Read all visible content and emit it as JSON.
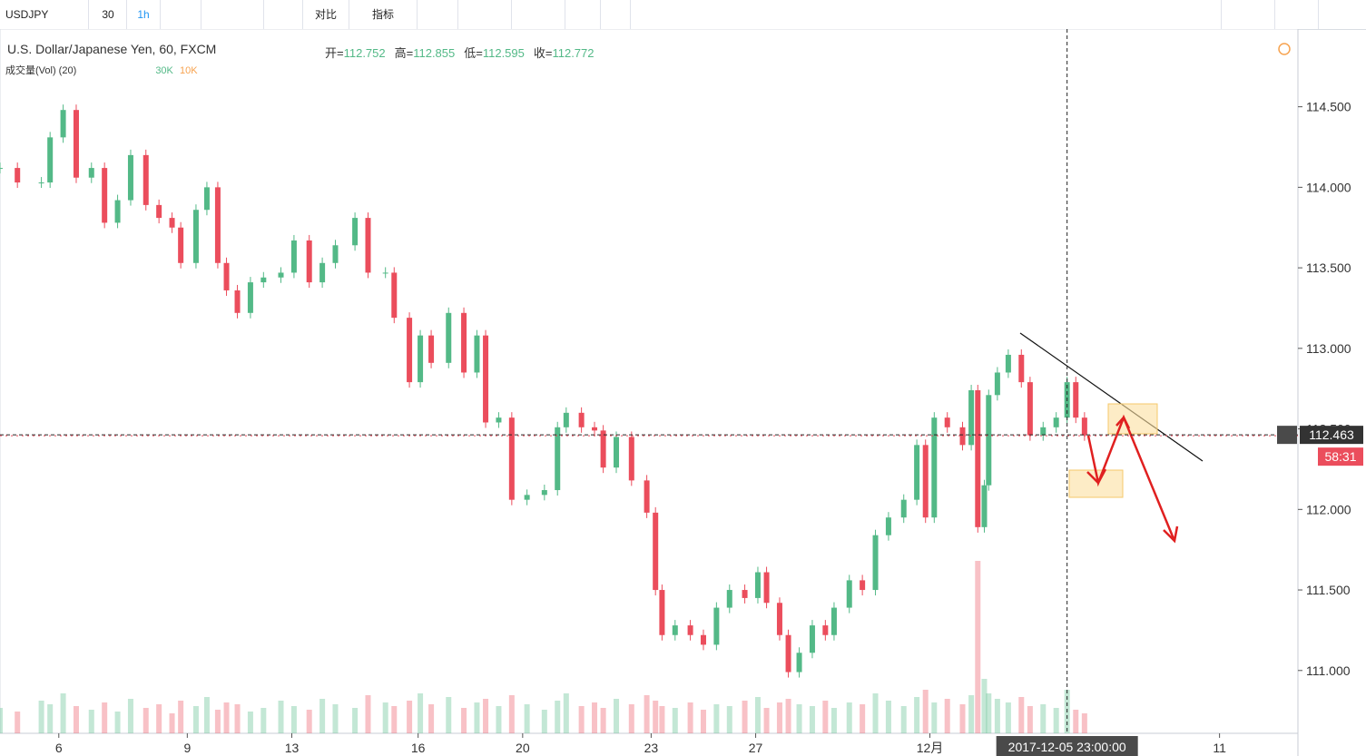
{
  "toolbar": {
    "symbol": "USDJPY",
    "interval_input": "30",
    "interval": "1h",
    "compare": "对比",
    "indicators": "指标"
  },
  "legend": {
    "title": "U.S. Dollar/Japanese Yen, 60, FXCM",
    "ohlc": [
      {
        "label": "开=",
        "value": 112.752
      },
      {
        "label": "高=",
        "value": 112.855
      },
      {
        "label": "低=",
        "value": 112.595
      },
      {
        "label": "收=",
        "value": 112.772
      }
    ],
    "volume_title": "成交量(Vol) (20)",
    "volume_values": [
      "30K",
      "10K"
    ]
  },
  "chart_data": {
    "type": "candlestick",
    "x": [
      0,
      8,
      19,
      23,
      29,
      35,
      42,
      48,
      54,
      60,
      67,
      73,
      79,
      83,
      90,
      95,
      100,
      104,
      109,
      115,
      121,
      129,
      135,
      142,
      148,
      154,
      163,
      169,
      177,
      181,
      188,
      193,
      198,
      206,
      213,
      219,
      223,
      229,
      235,
      242,
      250,
      256,
      260,
      267,
      273,
      277,
      283,
      290,
      297,
      301,
      304,
      310,
      317,
      323,
      329,
      335,
      342,
      348,
      352,
      358,
      362,
      367,
      373,
      379,
      383,
      390,
      396,
      402,
      408,
      415,
      421,
      425,
      429,
      435,
      442,
      446,
      449,
      452,
      454,
      458,
      463,
      469,
      473,
      479,
      485,
      490,
      494,
      498
    ],
    "values": [
      114.12,
      114.03,
      114.03,
      114.31,
      114.48,
      114.06,
      114.12,
      113.78,
      113.92,
      114.2,
      113.89,
      113.81,
      113.75,
      113.53,
      113.86,
      114.0,
      113.53,
      113.36,
      113.22,
      113.41,
      113.44,
      113.47,
      113.67,
      113.41,
      113.53,
      113.64,
      113.81,
      113.47,
      113.47,
      113.19,
      112.79,
      113.08,
      112.91,
      113.22,
      112.85,
      113.08,
      112.54,
      112.57,
      112.06,
      112.09,
      112.12,
      112.51,
      112.6,
      112.51,
      112.49,
      112.26,
      112.45,
      112.18,
      111.98,
      111.5,
      111.22,
      111.28,
      111.22,
      111.16,
      111.39,
      111.5,
      111.45,
      111.61,
      111.42,
      111.22,
      110.99,
      111.11,
      111.28,
      111.22,
      111.39,
      111.56,
      111.5,
      111.84,
      111.95,
      112.06,
      112.4,
      111.95,
      112.57,
      112.51,
      112.4,
      112.74,
      111.89,
      112.15,
      112.71,
      112.85,
      112.96,
      112.79,
      112.46,
      112.51,
      112.57,
      112.79,
      112.57,
      112.46
    ],
    "volume": [
      14,
      12,
      18,
      16,
      22,
      15,
      13,
      17,
      12,
      19,
      14,
      16,
      11,
      18,
      15,
      20,
      13,
      17,
      16,
      12,
      14,
      18,
      15,
      13,
      19,
      16,
      14,
      21,
      17,
      15,
      18,
      22,
      16,
      20,
      14,
      17,
      19,
      15,
      21,
      16,
      13,
      18,
      22,
      15,
      17,
      14,
      19,
      16,
      21,
      18,
      15,
      14,
      17,
      13,
      16,
      15,
      18,
      20,
      14,
      17,
      19,
      16,
      15,
      18,
      14,
      17,
      16,
      22,
      18,
      15,
      20,
      24,
      17,
      19,
      16,
      21,
      95,
      30,
      22,
      19,
      17,
      20,
      15,
      16,
      14,
      24,
      13,
      11
    ],
    "up_color": "#53b987",
    "down_color": "#eb4d5c",
    "xlim": [
      0,
      596
    ],
    "ylim": [
      110.61,
      114.96
    ],
    "vlim": [
      0,
      100
    ],
    "xticks": [
      {
        "value": 27,
        "label": "6"
      },
      {
        "value": 86,
        "label": "9"
      },
      {
        "value": 134,
        "label": "13"
      },
      {
        "value": 192,
        "label": "16"
      },
      {
        "value": 240,
        "label": "20"
      },
      {
        "value": 299,
        "label": "23"
      },
      {
        "value": 347,
        "label": "27"
      },
      {
        "value": 427,
        "label": "12月"
      },
      {
        "value": 560,
        "label": "11"
      }
    ],
    "yticks": [
      {
        "value": 111.0,
        "label": "111.000"
      },
      {
        "value": 111.5,
        "label": "111.500"
      },
      {
        "value": 112.0,
        "label": "112.000"
      },
      {
        "value": 112.5,
        "label": "112.500"
      },
      {
        "value": 113.0,
        "label": "113.000"
      },
      {
        "value": 113.5,
        "label": "113.500"
      },
      {
        "value": 114.0,
        "label": "114.000"
      },
      {
        "value": 114.5,
        "label": "114.500"
      }
    ],
    "last_price": {
      "value": 112.463,
      "label": "112.463"
    },
    "countdown": "58:31",
    "crosshair": {
      "x": 490,
      "label": "2017-12-05 23:00:00"
    }
  }
}
